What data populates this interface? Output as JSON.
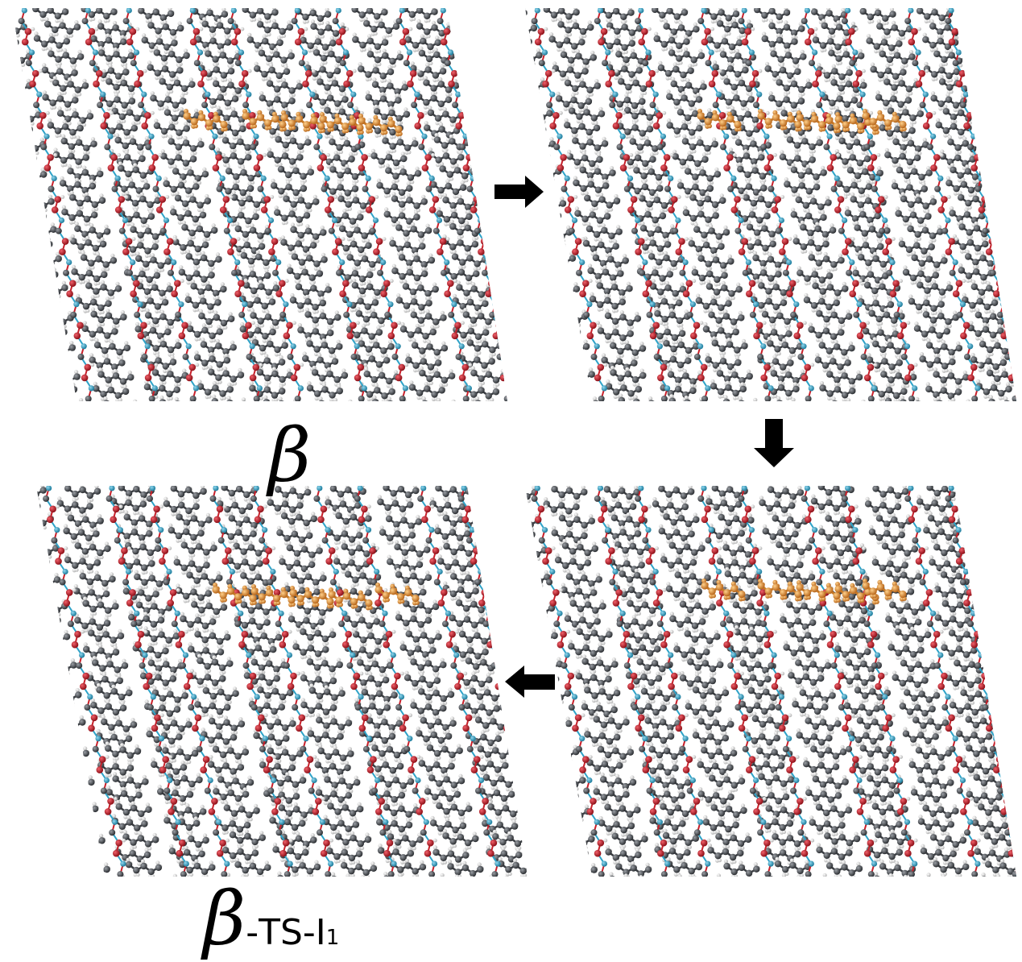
{
  "panels": [
    {
      "id": "panel-top-left",
      "label": "β"
    },
    {
      "id": "panel-top-right"
    },
    {
      "id": "panel-bottom-right"
    },
    {
      "id": "panel-bottom-left",
      "label": "β",
      "label_suffix": "-TS-I",
      "label_subscript": "1"
    }
  ],
  "arrows": [
    {
      "from": "panel-top-left",
      "to": "panel-top-right",
      "direction": "right"
    },
    {
      "from": "panel-top-right",
      "to": "panel-bottom-right",
      "direction": "down"
    },
    {
      "from": "panel-bottom-right",
      "to": "panel-bottom-left",
      "direction": "left"
    }
  ],
  "colors": {
    "carbon": "#4a4d52",
    "hydrogen": "#e6e6e6",
    "oxygen": "#c8202a",
    "nitrogen": "#2fa3c8",
    "highlight": "#e8942f",
    "arrow": "#000000"
  }
}
